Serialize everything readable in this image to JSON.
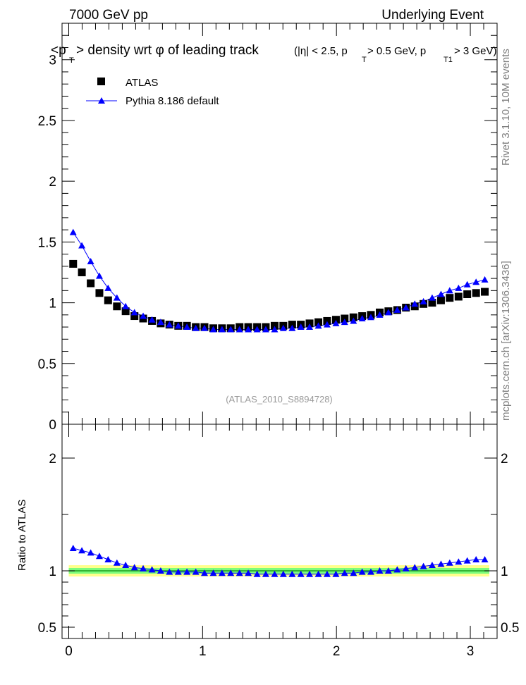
{
  "header": {
    "left": "7000 GeV pp",
    "right": "Underlying Event"
  },
  "side_labels": {
    "rivet": "Rivet 3.1.10,  10M events",
    "mcplots": "mcplots.cern.ch [arXiv:1306.3436]"
  },
  "watermark": "(ATLAS_2010_S8894728)",
  "colors": {
    "data": "#000000",
    "mc": "#0000ff",
    "band_inner": "#7cfc7c",
    "band_outer": "#ffff8c",
    "ref_line": "#0a8a0a"
  },
  "chart_data": [
    {
      "type": "scatter",
      "title": "<p_T> density wrt  φ of leading track  (|η| < 2.5, p_T > 0.5 GeV, p_T1 > 3 GeV)",
      "title_parts": {
        "p1": "<p",
        "p1_sub": "T",
        "p2": "> density wrt  φ of leading track",
        "q1": "(|η| < 2.5, p",
        "q1_sub": "T",
        "q2": " > 0.5 GeV, p",
        "q2_sub": "T1",
        "q3": " > 3 GeV)"
      },
      "xlabel": "",
      "ylabel": "",
      "xlim": [
        -0.05,
        3.2
      ],
      "ylim": [
        0,
        3.3
      ],
      "yticks": [
        0,
        0.5,
        1,
        1.5,
        2,
        2.5,
        3
      ],
      "ytick_labels": [
        "0",
        "0.5",
        "1",
        "1.5",
        "2",
        "2.5",
        "3"
      ],
      "legend": {
        "position": "top-left",
        "entries": [
          "ATLAS",
          "Pythia 8.186 default"
        ]
      },
      "x": [
        0.033,
        0.098,
        0.164,
        0.229,
        0.294,
        0.36,
        0.425,
        0.491,
        0.556,
        0.622,
        0.687,
        0.752,
        0.818,
        0.883,
        0.949,
        1.014,
        1.08,
        1.145,
        1.21,
        1.276,
        1.341,
        1.407,
        1.472,
        1.538,
        1.603,
        1.669,
        1.734,
        1.799,
        1.865,
        1.93,
        1.996,
        2.061,
        2.127,
        2.192,
        2.257,
        2.323,
        2.388,
        2.454,
        2.519,
        2.585,
        2.65,
        2.715,
        2.781,
        2.846,
        2.912,
        2.977,
        3.043,
        3.108
      ],
      "series": [
        {
          "name": "ATLAS",
          "marker": "square",
          "values": [
            1.32,
            1.25,
            1.16,
            1.08,
            1.02,
            0.97,
            0.93,
            0.89,
            0.87,
            0.85,
            0.83,
            0.82,
            0.81,
            0.81,
            0.8,
            0.8,
            0.79,
            0.79,
            0.79,
            0.8,
            0.8,
            0.8,
            0.8,
            0.81,
            0.81,
            0.82,
            0.82,
            0.83,
            0.84,
            0.85,
            0.86,
            0.87,
            0.88,
            0.89,
            0.9,
            0.92,
            0.93,
            0.94,
            0.96,
            0.97,
            0.99,
            1.0,
            1.02,
            1.04,
            1.05,
            1.07,
            1.08,
            1.09
          ]
        },
        {
          "name": "Pythia 8.186 default",
          "marker": "triangle",
          "values": [
            1.58,
            1.47,
            1.34,
            1.22,
            1.12,
            1.04,
            0.97,
            0.92,
            0.89,
            0.86,
            0.84,
            0.82,
            0.81,
            0.8,
            0.79,
            0.79,
            0.78,
            0.78,
            0.78,
            0.78,
            0.78,
            0.78,
            0.78,
            0.78,
            0.79,
            0.79,
            0.8,
            0.8,
            0.81,
            0.82,
            0.83,
            0.84,
            0.85,
            0.87,
            0.88,
            0.9,
            0.92,
            0.94,
            0.96,
            0.99,
            1.01,
            1.04,
            1.07,
            1.1,
            1.12,
            1.15,
            1.17,
            1.19
          ]
        }
      ]
    },
    {
      "type": "scatter",
      "title": "",
      "xlabel": "",
      "ylabel": "Ratio to ATLAS",
      "xlim": [
        -0.05,
        3.2
      ],
      "ylim": [
        0.4,
        2.3
      ],
      "xticks": [
        0,
        1,
        2,
        3
      ],
      "xtick_labels": [
        "0",
        "1",
        "2",
        "3"
      ],
      "yticks": [
        0.5,
        1,
        2
      ],
      "ytick_labels": [
        "0.5",
        "1",
        "2"
      ],
      "reference_line": 1.0,
      "band_inner": [
        0.975,
        1.025
      ],
      "band_outer": [
        0.95,
        1.05
      ],
      "x": [
        0.033,
        0.098,
        0.164,
        0.229,
        0.294,
        0.36,
        0.425,
        0.491,
        0.556,
        0.622,
        0.687,
        0.752,
        0.818,
        0.883,
        0.949,
        1.014,
        1.08,
        1.145,
        1.21,
        1.276,
        1.341,
        1.407,
        1.472,
        1.538,
        1.603,
        1.669,
        1.734,
        1.799,
        1.865,
        1.93,
        1.996,
        2.061,
        2.127,
        2.192,
        2.257,
        2.323,
        2.388,
        2.454,
        2.519,
        2.585,
        2.65,
        2.715,
        2.781,
        2.846,
        2.912,
        2.977,
        3.043,
        3.108
      ],
      "series": [
        {
          "name": "Pythia 8.186 default",
          "marker": "triangle",
          "values": [
            1.2,
            1.18,
            1.16,
            1.13,
            1.1,
            1.07,
            1.05,
            1.03,
            1.02,
            1.01,
            1.0,
            0.99,
            0.99,
            0.99,
            0.99,
            0.98,
            0.98,
            0.98,
            0.98,
            0.98,
            0.98,
            0.97,
            0.97,
            0.97,
            0.97,
            0.97,
            0.97,
            0.97,
            0.97,
            0.97,
            0.97,
            0.98,
            0.98,
            0.99,
            0.99,
            1.0,
            1.0,
            1.01,
            1.02,
            1.03,
            1.04,
            1.05,
            1.06,
            1.07,
            1.08,
            1.09,
            1.1,
            1.1
          ]
        }
      ]
    }
  ]
}
